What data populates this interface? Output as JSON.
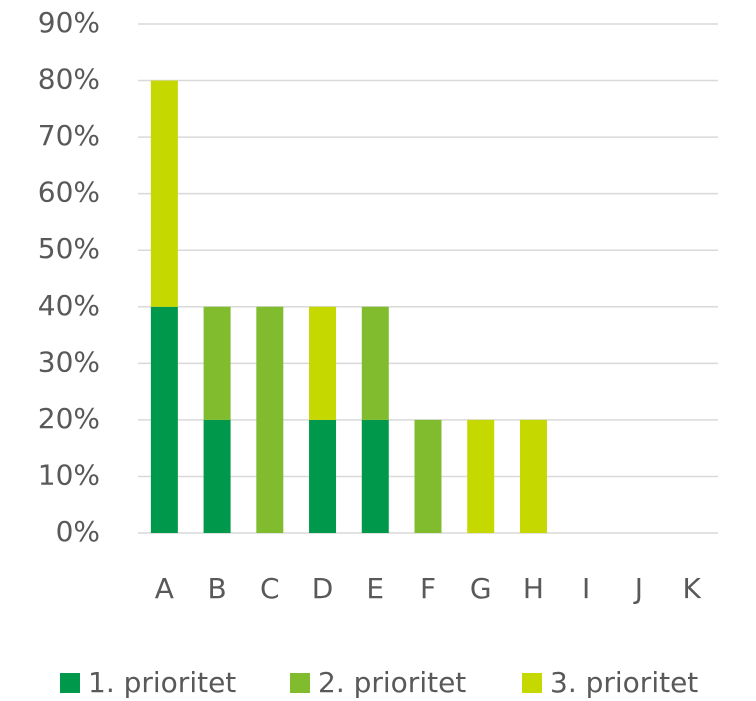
{
  "chart_data": {
    "type": "stacked_bar",
    "categories": [
      "A",
      "B",
      "C",
      "D",
      "E",
      "F",
      "G",
      "H",
      "I",
      "J",
      "K"
    ],
    "series": [
      {
        "name": "1. prioritet",
        "color": "#00984a",
        "values": [
          40,
          20,
          0,
          20,
          20,
          0,
          0,
          0,
          0,
          0,
          0
        ]
      },
      {
        "name": "2. prioritet",
        "color": "#80bc2e",
        "values": [
          0,
          20,
          40,
          0,
          20,
          20,
          0,
          0,
          0,
          0,
          0
        ]
      },
      {
        "name": "3. prioritet",
        "color": "#c5d800",
        "values": [
          40,
          0,
          0,
          20,
          0,
          0,
          20,
          20,
          0,
          0,
          0
        ]
      }
    ],
    "ylim": [
      0,
      90
    ],
    "yticks": [
      {
        "value": 0,
        "label": "0%"
      },
      {
        "value": 10,
        "label": "10%"
      },
      {
        "value": 20,
        "label": "20%"
      },
      {
        "value": 30,
        "label": "30%"
      },
      {
        "value": 40,
        "label": "40%"
      },
      {
        "value": 50,
        "label": "50%"
      },
      {
        "value": 60,
        "label": "60%"
      },
      {
        "value": 70,
        "label": "70%"
      },
      {
        "value": 80,
        "label": "80%"
      },
      {
        "value": 90,
        "label": "90%"
      }
    ],
    "grid": true,
    "legend": "bottom"
  }
}
